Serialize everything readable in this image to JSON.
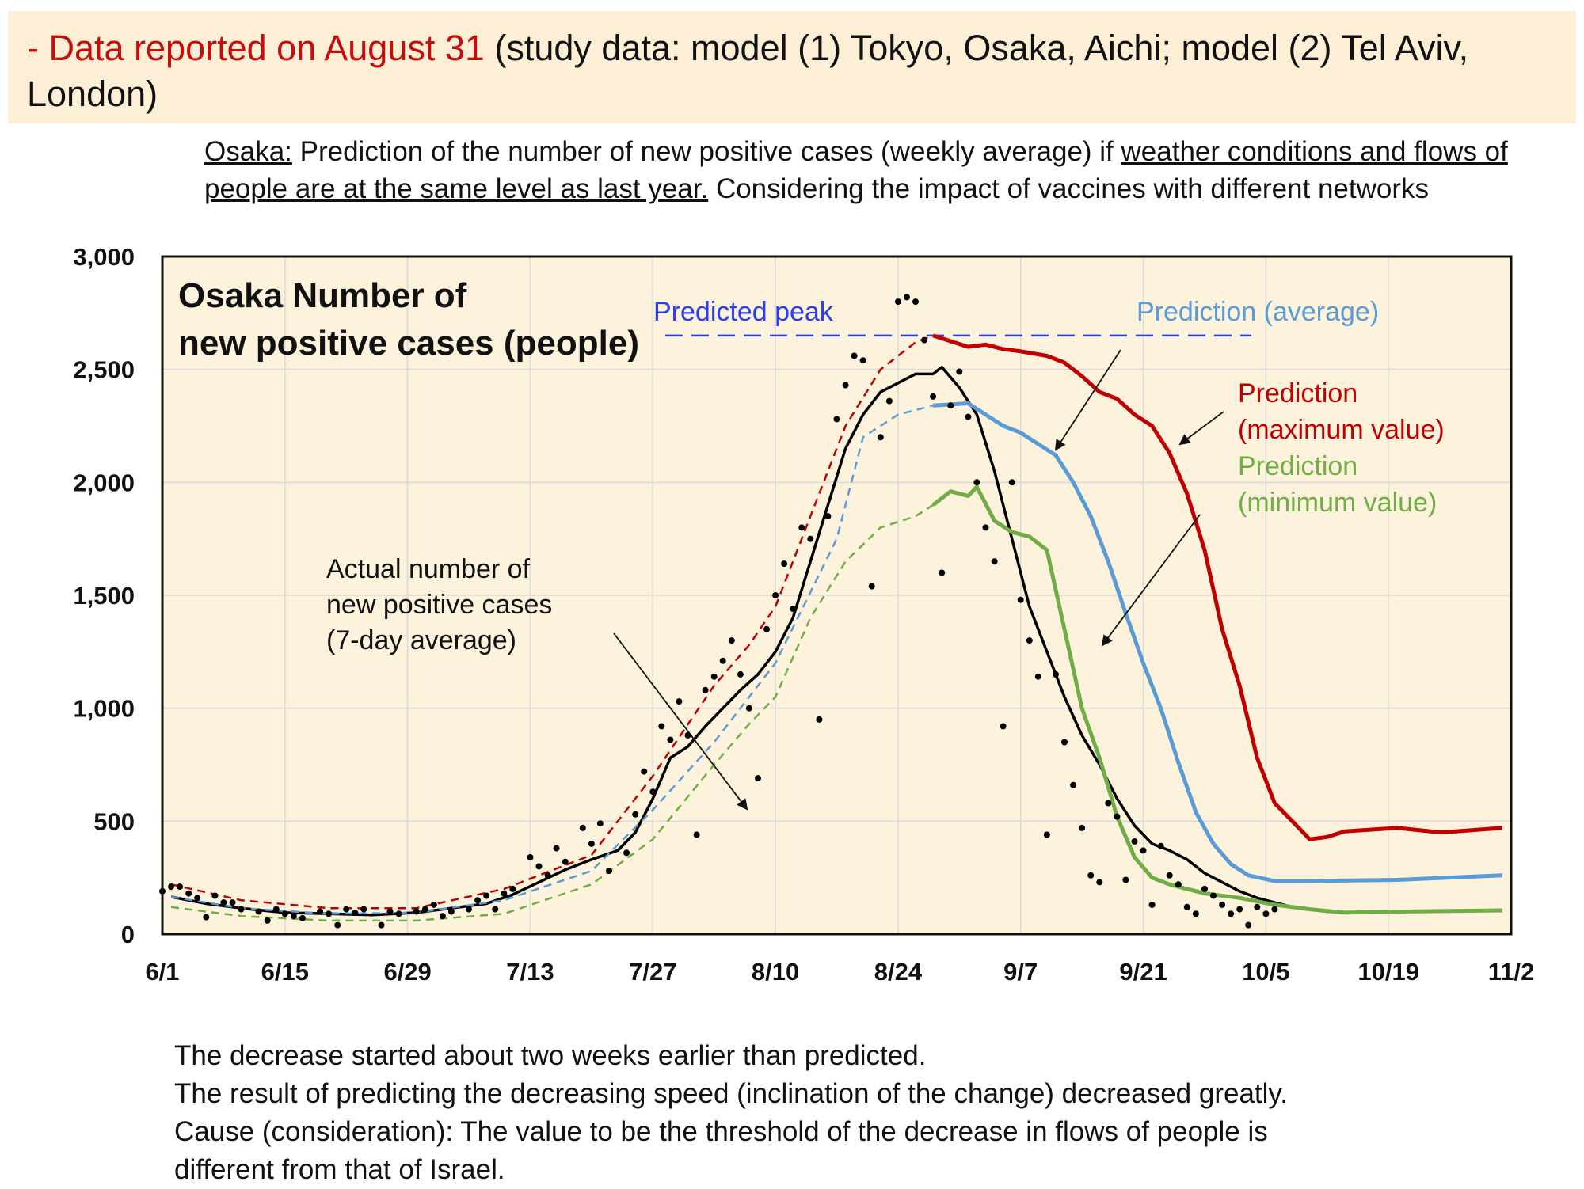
{
  "banner": {
    "highlight": "- Data reported on August 31",
    "rest": " (study data: model (1) Tokyo, Osaka, Aichi; model (2) Tel Aviv, London)"
  },
  "description": {
    "city": "Osaka:",
    "part1": " Prediction of the number of new positive cases (weekly average) if ",
    "underlined": "weather conditions and flows of people are at the same level as last year.",
    "part2": " Considering the impact of vaccines with different networks"
  },
  "notes": [
    "The decrease started about two weeks earlier than predicted.",
    "The result of predicting the decreasing speed (inclination of the change) decreased greatly.",
    "Cause (consideration): The value to be the threshold of the decrease in flows of people is",
    "different from that of Israel."
  ],
  "chart_data": {
    "type": "line",
    "title": "Osaka  Number of new positive cases (people)",
    "xlabel": "",
    "ylabel": "",
    "x_ticks": [
      "6/1",
      "6/15",
      "6/29",
      "7/13",
      "7/27",
      "8/10",
      "8/24",
      "9/7",
      "9/21",
      "10/5",
      "10/19",
      "11/2"
    ],
    "x_range": [
      "6/1",
      "11/2"
    ],
    "y_ticks": [
      "0",
      "500",
      "1,000",
      "1,500",
      "2,000",
      "2,500",
      "3,000"
    ],
    "ylim": [
      0,
      3000
    ],
    "grid": true,
    "background_color": "#fdf3dc",
    "annotations": {
      "predicted_peak": "Predicted peak",
      "actual": [
        "Actual number of",
        "new positive cases",
        "(7-day average)"
      ],
      "pred_avg": "Prediction (average)",
      "pred_max": [
        "Prediction",
        "(maximum value)"
      ],
      "pred_min": [
        "Prediction",
        "(minimum value)"
      ]
    },
    "predicted_peak_value": 2650,
    "series": [
      {
        "name": "Actual number of new positive cases (7-day average)",
        "color": "#000000",
        "style": "solid",
        "points": [
          [
            "6/2",
            165
          ],
          [
            "6/6",
            135
          ],
          [
            "6/10",
            115
          ],
          [
            "6/15",
            95
          ],
          [
            "6/20",
            90
          ],
          [
            "6/25",
            85
          ],
          [
            "6/30",
            95
          ],
          [
            "7/4",
            115
          ],
          [
            "7/8",
            135
          ],
          [
            "7/11",
            175
          ],
          [
            "7/14",
            230
          ],
          [
            "7/17",
            285
          ],
          [
            "7/20",
            330
          ],
          [
            "7/23",
            370
          ],
          [
            "7/25",
            450
          ],
          [
            "7/27",
            600
          ],
          [
            "7/29",
            780
          ],
          [
            "7/31",
            830
          ],
          [
            "8/2",
            920
          ],
          [
            "8/4",
            1000
          ],
          [
            "8/6",
            1080
          ],
          [
            "8/8",
            1150
          ],
          [
            "8/10",
            1250
          ],
          [
            "8/12",
            1400
          ],
          [
            "8/14",
            1650
          ],
          [
            "8/16",
            1900
          ],
          [
            "8/18",
            2150
          ],
          [
            "8/20",
            2300
          ],
          [
            "8/22",
            2400
          ],
          [
            "8/24",
            2440
          ],
          [
            "8/26",
            2480
          ],
          [
            "8/28",
            2480
          ],
          [
            "8/29",
            2510
          ],
          [
            "8/31",
            2420
          ],
          [
            "9/2",
            2300
          ],
          [
            "9/4",
            2050
          ],
          [
            "9/6",
            1750
          ],
          [
            "9/8",
            1450
          ],
          [
            "9/10",
            1250
          ],
          [
            "9/12",
            1050
          ],
          [
            "9/14",
            880
          ],
          [
            "9/16",
            750
          ],
          [
            "9/18",
            600
          ],
          [
            "9/20",
            480
          ],
          [
            "9/22",
            400
          ],
          [
            "9/24",
            370
          ],
          [
            "9/26",
            330
          ],
          [
            "9/28",
            270
          ],
          [
            "9/30",
            230
          ],
          [
            "10/2",
            190
          ],
          [
            "10/4",
            160
          ],
          [
            "10/6",
            140
          ],
          [
            "10/8",
            120
          ],
          [
            "10/10",
            110
          ],
          [
            "10/12",
            100
          ],
          [
            "10/14",
            95
          ]
        ]
      },
      {
        "name": "Prediction (average)",
        "color": "#5b9bd5",
        "style": "dashed-then-solid",
        "points": [
          [
            "6/2",
            165
          ],
          [
            "6/10",
            115
          ],
          [
            "6/20",
            90
          ],
          [
            "6/30",
            95
          ],
          [
            "7/10",
            150
          ],
          [
            "7/20",
            280
          ],
          [
            "7/27",
            550
          ],
          [
            "8/3",
            850
          ],
          [
            "8/10",
            1200
          ],
          [
            "8/17",
            1750
          ],
          [
            "8/20",
            2200
          ],
          [
            "8/24",
            2300
          ],
          [
            "8/28",
            2340
          ],
          [
            "9/1",
            2350
          ],
          [
            "9/3",
            2300
          ],
          [
            "9/5",
            2250
          ],
          [
            "9/7",
            2220
          ],
          [
            "9/9",
            2170
          ],
          [
            "9/11",
            2120
          ],
          [
            "9/13",
            2000
          ],
          [
            "9/15",
            1850
          ],
          [
            "9/17",
            1650
          ],
          [
            "9/19",
            1420
          ],
          [
            "9/21",
            1200
          ],
          [
            "9/23",
            1000
          ],
          [
            "9/25",
            760
          ],
          [
            "9/27",
            540
          ],
          [
            "9/29",
            400
          ],
          [
            "10/1",
            310
          ],
          [
            "10/3",
            260
          ],
          [
            "10/6",
            235
          ],
          [
            "10/10",
            235
          ],
          [
            "10/20",
            240
          ],
          [
            "11/1",
            260
          ]
        ]
      },
      {
        "name": "Prediction (maximum value)",
        "color": "#c00000",
        "style": "dashed-then-solid",
        "points": [
          [
            "6/2",
            220
          ],
          [
            "6/10",
            150
          ],
          [
            "6/20",
            115
          ],
          [
            "6/30",
            115
          ],
          [
            "7/10",
            200
          ],
          [
            "7/20",
            350
          ],
          [
            "7/27",
            700
          ],
          [
            "8/3",
            1100
          ],
          [
            "8/7",
            1280
          ],
          [
            "8/10",
            1450
          ],
          [
            "8/14",
            1850
          ],
          [
            "8/18",
            2250
          ],
          [
            "8/22",
            2500
          ],
          [
            "8/26",
            2620
          ],
          [
            "8/28",
            2650
          ],
          [
            "9/1",
            2600
          ],
          [
            "9/3",
            2610
          ],
          [
            "9/5",
            2590
          ],
          [
            "9/7",
            2580
          ],
          [
            "9/10",
            2560
          ],
          [
            "9/12",
            2530
          ],
          [
            "9/14",
            2470
          ],
          [
            "9/16",
            2400
          ],
          [
            "9/18",
            2370
          ],
          [
            "9/20",
            2300
          ],
          [
            "9/22",
            2250
          ],
          [
            "9/24",
            2130
          ],
          [
            "9/26",
            1950
          ],
          [
            "9/28",
            1700
          ],
          [
            "9/30",
            1350
          ],
          [
            "10/2",
            1100
          ],
          [
            "10/4",
            780
          ],
          [
            "10/6",
            580
          ],
          [
            "10/8",
            500
          ],
          [
            "10/10",
            420
          ],
          [
            "10/12",
            430
          ],
          [
            "10/14",
            455
          ],
          [
            "10/20",
            470
          ],
          [
            "10/25",
            450
          ],
          [
            "11/1",
            470
          ]
        ]
      },
      {
        "name": "Prediction (minimum value)",
        "color": "#70ad47",
        "style": "dashed-then-solid",
        "points": [
          [
            "6/2",
            120
          ],
          [
            "6/10",
            80
          ],
          [
            "6/20",
            60
          ],
          [
            "6/30",
            60
          ],
          [
            "7/10",
            90
          ],
          [
            "7/20",
            220
          ],
          [
            "7/27",
            420
          ],
          [
            "8/3",
            750
          ],
          [
            "8/7",
            930
          ],
          [
            "8/10",
            1050
          ],
          [
            "8/14",
            1400
          ],
          [
            "8/18",
            1650
          ],
          [
            "8/22",
            1800
          ],
          [
            "8/26",
            1850
          ],
          [
            "8/28",
            1900
          ],
          [
            "8/30",
            1960
          ],
          [
            "9/1",
            1940
          ],
          [
            "9/2",
            1980
          ],
          [
            "9/4",
            1830
          ],
          [
            "9/6",
            1780
          ],
          [
            "9/8",
            1760
          ],
          [
            "9/10",
            1700
          ],
          [
            "9/12",
            1350
          ],
          [
            "9/14",
            1000
          ],
          [
            "9/16",
            780
          ],
          [
            "9/18",
            520
          ],
          [
            "9/20",
            340
          ],
          [
            "9/22",
            250
          ],
          [
            "9/24",
            220
          ],
          [
            "9/26",
            200
          ],
          [
            "9/28",
            180
          ],
          [
            "10/2",
            160
          ],
          [
            "10/6",
            130
          ],
          [
            "10/10",
            110
          ],
          [
            "10/14",
            95
          ],
          [
            "10/20",
            100
          ],
          [
            "11/1",
            105
          ]
        ]
      }
    ],
    "daily_points": [
      [
        "6/1",
        190
      ],
      [
        "6/2",
        210
      ],
      [
        "6/3",
        210
      ],
      [
        "6/4",
        180
      ],
      [
        "6/5",
        160
      ],
      [
        "6/6",
        75
      ],
      [
        "6/7",
        170
      ],
      [
        "6/8",
        140
      ],
      [
        "6/9",
        140
      ],
      [
        "6/10",
        110
      ],
      [
        "6/12",
        100
      ],
      [
        "6/13",
        60
      ],
      [
        "6/14",
        110
      ],
      [
        "6/15",
        90
      ],
      [
        "6/16",
        80
      ],
      [
        "6/17",
        70
      ],
      [
        "6/19",
        100
      ],
      [
        "6/20",
        90
      ],
      [
        "6/21",
        40
      ],
      [
        "6/22",
        110
      ],
      [
        "6/23",
        95
      ],
      [
        "6/24",
        110
      ],
      [
        "6/26",
        40
      ],
      [
        "6/27",
        100
      ],
      [
        "6/28",
        90
      ],
      [
        "6/30",
        100
      ],
      [
        "7/1",
        110
      ],
      [
        "7/2",
        130
      ],
      [
        "7/3",
        80
      ],
      [
        "7/4",
        100
      ],
      [
        "7/6",
        110
      ],
      [
        "7/7",
        150
      ],
      [
        "7/8",
        170
      ],
      [
        "7/9",
        110
      ],
      [
        "7/10",
        180
      ],
      [
        "7/11",
        200
      ],
      [
        "7/13",
        340
      ],
      [
        "7/14",
        300
      ],
      [
        "7/15",
        260
      ],
      [
        "7/16",
        380
      ],
      [
        "7/17",
        320
      ],
      [
        "7/19",
        470
      ],
      [
        "7/20",
        400
      ],
      [
        "7/21",
        490
      ],
      [
        "7/22",
        280
      ],
      [
        "7/24",
        360
      ],
      [
        "7/25",
        530
      ],
      [
        "7/26",
        720
      ],
      [
        "7/27",
        630
      ],
      [
        "7/28",
        920
      ],
      [
        "7/29",
        860
      ],
      [
        "7/30",
        1030
      ],
      [
        "7/31",
        880
      ],
      [
        "8/1",
        440
      ],
      [
        "8/2",
        1080
      ],
      [
        "8/3",
        1140
      ],
      [
        "8/4",
        1210
      ],
      [
        "8/5",
        1300
      ],
      [
        "8/6",
        1150
      ],
      [
        "8/7",
        1000
      ],
      [
        "8/8",
        690
      ],
      [
        "8/9",
        1350
      ],
      [
        "8/10",
        1500
      ],
      [
        "8/11",
        1640
      ],
      [
        "8/12",
        1440
      ],
      [
        "8/13",
        1800
      ],
      [
        "8/14",
        1750
      ],
      [
        "8/15",
        950
      ],
      [
        "8/16",
        1850
      ],
      [
        "8/17",
        2280
      ],
      [
        "8/18",
        2430
      ],
      [
        "8/19",
        2560
      ],
      [
        "8/20",
        2540
      ],
      [
        "8/21",
        1540
      ],
      [
        "8/22",
        2200
      ],
      [
        "8/23",
        2360
      ],
      [
        "8/24",
        2800
      ],
      [
        "8/25",
        2820
      ],
      [
        "8/26",
        2800
      ],
      [
        "8/27",
        2630
      ],
      [
        "8/28",
        2380
      ],
      [
        "8/29",
        1600
      ],
      [
        "8/30",
        2340
      ],
      [
        "8/31",
        2490
      ],
      [
        "9/1",
        2290
      ],
      [
        "9/2",
        2000
      ],
      [
        "9/3",
        1800
      ],
      [
        "9/4",
        1650
      ],
      [
        "9/5",
        920
      ],
      [
        "9/6",
        2000
      ],
      [
        "9/7",
        1480
      ],
      [
        "9/8",
        1300
      ],
      [
        "9/9",
        1140
      ],
      [
        "9/10",
        440
      ],
      [
        "9/11",
        1150
      ],
      [
        "9/12",
        850
      ],
      [
        "9/13",
        660
      ],
      [
        "9/14",
        470
      ],
      [
        "9/15",
        260
      ],
      [
        "9/16",
        230
      ],
      [
        "9/17",
        580
      ],
      [
        "9/18",
        520
      ],
      [
        "9/19",
        240
      ],
      [
        "9/20",
        410
      ],
      [
        "9/21",
        370
      ],
      [
        "9/22",
        130
      ],
      [
        "9/23",
        390
      ],
      [
        "9/24",
        260
      ],
      [
        "9/25",
        220
      ],
      [
        "9/26",
        120
      ],
      [
        "9/27",
        90
      ],
      [
        "9/28",
        200
      ],
      [
        "9/29",
        170
      ],
      [
        "9/30",
        130
      ],
      [
        "10/1",
        90
      ],
      [
        "10/2",
        110
      ],
      [
        "10/3",
        40
      ],
      [
        "10/4",
        120
      ],
      [
        "10/5",
        90
      ],
      [
        "10/6",
        110
      ]
    ]
  }
}
